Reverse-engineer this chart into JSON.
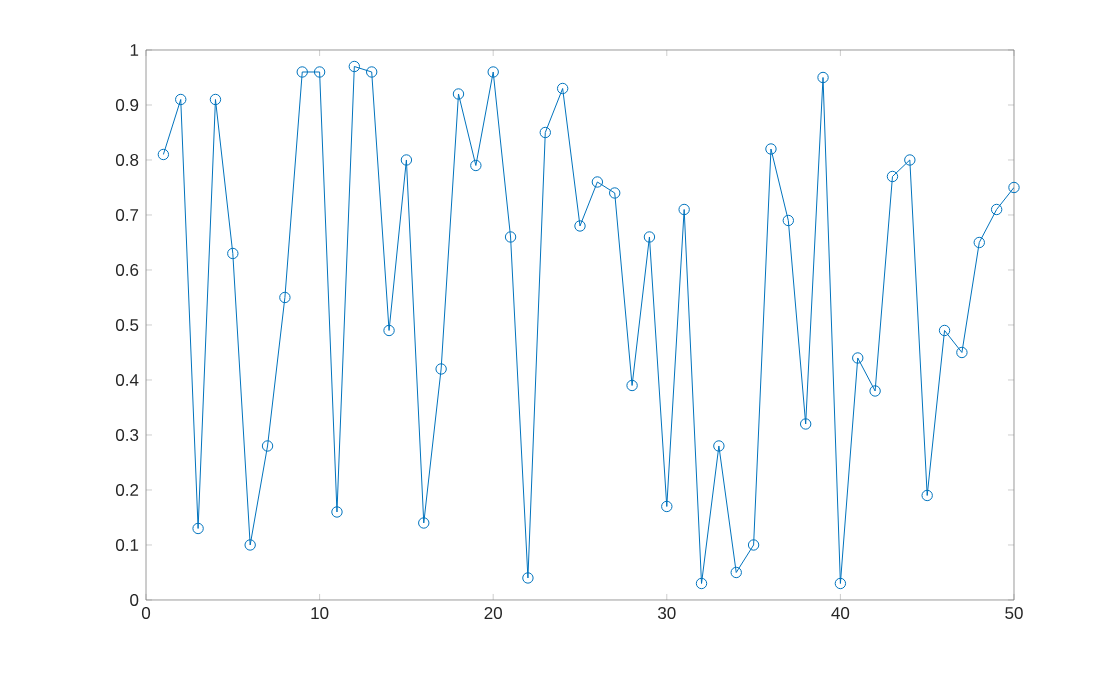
{
  "chart_data": {
    "type": "line",
    "x": [
      1,
      2,
      3,
      4,
      5,
      6,
      7,
      8,
      9,
      10,
      11,
      12,
      13,
      14,
      15,
      16,
      17,
      18,
      19,
      20,
      21,
      22,
      23,
      24,
      25,
      26,
      27,
      28,
      29,
      30,
      31,
      32,
      33,
      34,
      35,
      36,
      37,
      38,
      39,
      40,
      41,
      42,
      43,
      44,
      45,
      46,
      47,
      48,
      49,
      50
    ],
    "series": [
      {
        "color": "#0072bd",
        "values": [
          0.81,
          0.91,
          0.13,
          0.91,
          0.63,
          0.1,
          0.28,
          0.55,
          0.96,
          0.96,
          0.16,
          0.97,
          0.96,
          0.49,
          0.8,
          0.14,
          0.42,
          0.92,
          0.79,
          0.96,
          0.66,
          0.04,
          0.85,
          0.93,
          0.68,
          0.76,
          0.74,
          0.39,
          0.66,
          0.17,
          0.71,
          0.03,
          0.28,
          0.05,
          0.1,
          0.82,
          0.69,
          0.32,
          0.95,
          0.03,
          0.44,
          0.38,
          0.77,
          0.8,
          0.19,
          0.49,
          0.45,
          0.65,
          0.71,
          0.75
        ]
      }
    ],
    "xlim": [
      0,
      50
    ],
    "xticks": [
      0,
      10,
      20,
      30,
      40,
      50
    ],
    "ylim": [
      0,
      1
    ],
    "yticks": [
      0,
      0.1,
      0.2,
      0.3,
      0.4,
      0.5,
      0.6,
      0.7,
      0.8,
      0.9,
      1
    ],
    "marker": "circle",
    "line_style": "solid",
    "grid": false
  }
}
